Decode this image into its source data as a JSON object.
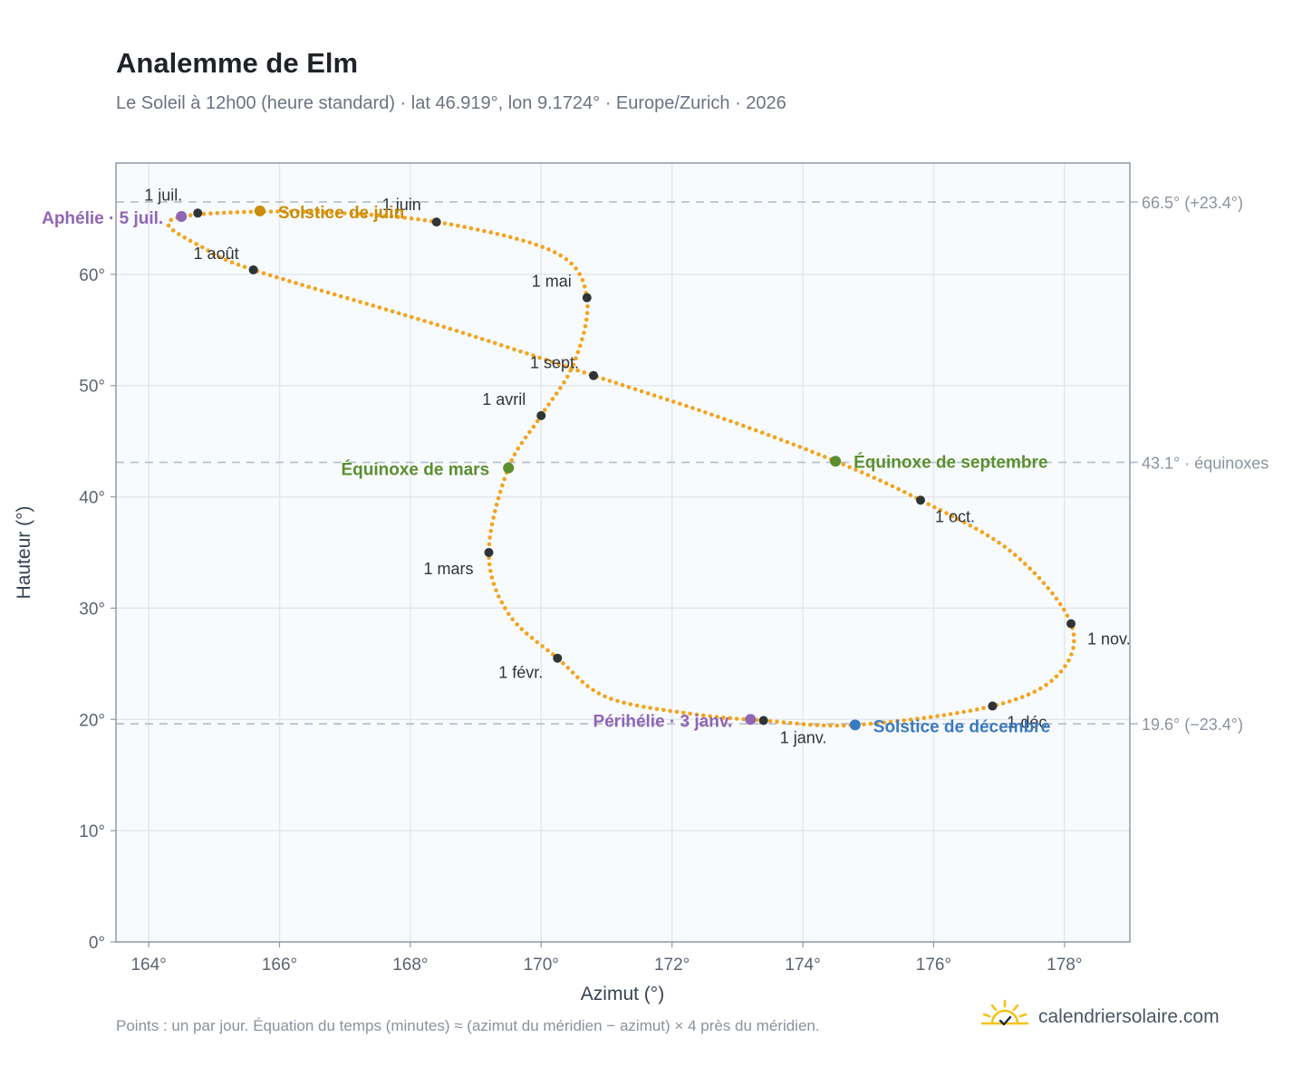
{
  "header": {
    "title": "Analemme de Elm",
    "subtitle": "Le Soleil à 12h00 (heure standard) · lat 46.919°, lon 9.1724° · Europe/Zurich · 2026"
  },
  "footer": {
    "note": "Points : un par jour. Équation du temps (minutes) ≈ (azimut du méridien − azimut) × 4 près du méridien.",
    "brand": "calendriersolaire.com"
  },
  "colors": {
    "curve": "#f2a41f",
    "month_marker": "#2f3437",
    "equinox": "#5a8f2e",
    "solstice_june": "#c98d0a",
    "solstice_dec": "#3a7abf",
    "apsis": "#9065b4",
    "grid": "#e3e8ee",
    "ref_line": "#b7c2ce",
    "plot_bg": "#f8fbfd",
    "frame": "#8f9aa8"
  },
  "chart_data": {
    "type": "scatter",
    "xlabel": "Azimut (°)",
    "ylabel": "Hauteur (°)",
    "xlim": [
      163.5,
      179.0
    ],
    "ylim": [
      0,
      70
    ],
    "x_ticks": [
      164,
      166,
      168,
      170,
      172,
      174,
      176,
      178
    ],
    "x_tick_labels": [
      "164°",
      "166°",
      "168°",
      "170°",
      "172°",
      "174°",
      "176°",
      "178°"
    ],
    "y_ticks": [
      0,
      10,
      20,
      30,
      40,
      50,
      60
    ],
    "y_tick_labels": [
      "0°",
      "10°",
      "20°",
      "30°",
      "40°",
      "50°",
      "60°"
    ],
    "grid": true,
    "reference_lines": [
      {
        "y": 66.5,
        "label": "66.5° (+23.4°)"
      },
      {
        "y": 43.1,
        "label": "43.1° · équinoxes"
      },
      {
        "y": 19.6,
        "label": "19.6° (−23.4°)"
      }
    ],
    "series_daily": {
      "marker": "small dot, one per day",
      "control_points": [
        {
          "x": 173.4,
          "y": 19.9
        },
        {
          "x": 172.3,
          "y": 20.5
        },
        {
          "x": 171.0,
          "y": 22.0
        },
        {
          "x": 170.25,
          "y": 25.5
        },
        {
          "x": 169.5,
          "y": 29.5
        },
        {
          "x": 169.2,
          "y": 35.0
        },
        {
          "x": 169.5,
          "y": 42.6
        },
        {
          "x": 170.0,
          "y": 47.3
        },
        {
          "x": 170.5,
          "y": 52.0
        },
        {
          "x": 170.7,
          "y": 57.9
        },
        {
          "x": 170.2,
          "y": 62.0
        },
        {
          "x": 168.4,
          "y": 64.7
        },
        {
          "x": 166.5,
          "y": 65.6
        },
        {
          "x": 164.8,
          "y": 65.4
        },
        {
          "x": 164.3,
          "y": 64.5
        },
        {
          "x": 164.8,
          "y": 62.5
        },
        {
          "x": 165.6,
          "y": 60.4
        },
        {
          "x": 168.5,
          "y": 55.3
        },
        {
          "x": 170.8,
          "y": 50.9
        },
        {
          "x": 172.8,
          "y": 47.0
        },
        {
          "x": 174.5,
          "y": 43.2
        },
        {
          "x": 175.8,
          "y": 39.7
        },
        {
          "x": 177.2,
          "y": 35.0
        },
        {
          "x": 178.1,
          "y": 28.6
        },
        {
          "x": 177.9,
          "y": 24.0
        },
        {
          "x": 176.9,
          "y": 21.2
        },
        {
          "x": 174.8,
          "y": 19.5
        },
        {
          "x": 173.4,
          "y": 19.9
        }
      ]
    },
    "month_markers": [
      {
        "label": "1 janv.",
        "x": 173.4,
        "y": 19.9
      },
      {
        "label": "1 févr.",
        "x": 170.25,
        "y": 25.5
      },
      {
        "label": "1 mars",
        "x": 169.2,
        "y": 35.0
      },
      {
        "label": "1 avril",
        "x": 170.0,
        "y": 47.3
      },
      {
        "label": "1 mai",
        "x": 170.7,
        "y": 57.9
      },
      {
        "label": "1 juin",
        "x": 168.4,
        "y": 64.7
      },
      {
        "label": "1 juil.",
        "x": 164.75,
        "y": 65.5
      },
      {
        "label": "1 août",
        "x": 165.6,
        "y": 60.4
      },
      {
        "label": "1 sept.",
        "x": 170.8,
        "y": 50.9
      },
      {
        "label": "1 oct.",
        "x": 175.8,
        "y": 39.7
      },
      {
        "label": "1 nov.",
        "x": 178.1,
        "y": 28.6
      },
      {
        "label": "1 déc.",
        "x": 176.9,
        "y": 21.2
      }
    ],
    "events": [
      {
        "label": "Équinoxe de mars",
        "x": 169.5,
        "y": 42.6,
        "kind": "equinox"
      },
      {
        "label": "Solstice de juin",
        "x": 165.7,
        "y": 65.7,
        "kind": "solstice_june"
      },
      {
        "label": "Aphélie · 5 juil.",
        "x": 164.5,
        "y": 65.2,
        "kind": "apsis"
      },
      {
        "label": "Équinoxe de septembre",
        "x": 174.5,
        "y": 43.2,
        "kind": "equinox"
      },
      {
        "label": "Solstice de décembre",
        "x": 174.8,
        "y": 19.5,
        "kind": "solstice_dec"
      },
      {
        "label": "Périhélie · 3 janv.",
        "x": 173.2,
        "y": 20.0,
        "kind": "apsis"
      }
    ]
  }
}
